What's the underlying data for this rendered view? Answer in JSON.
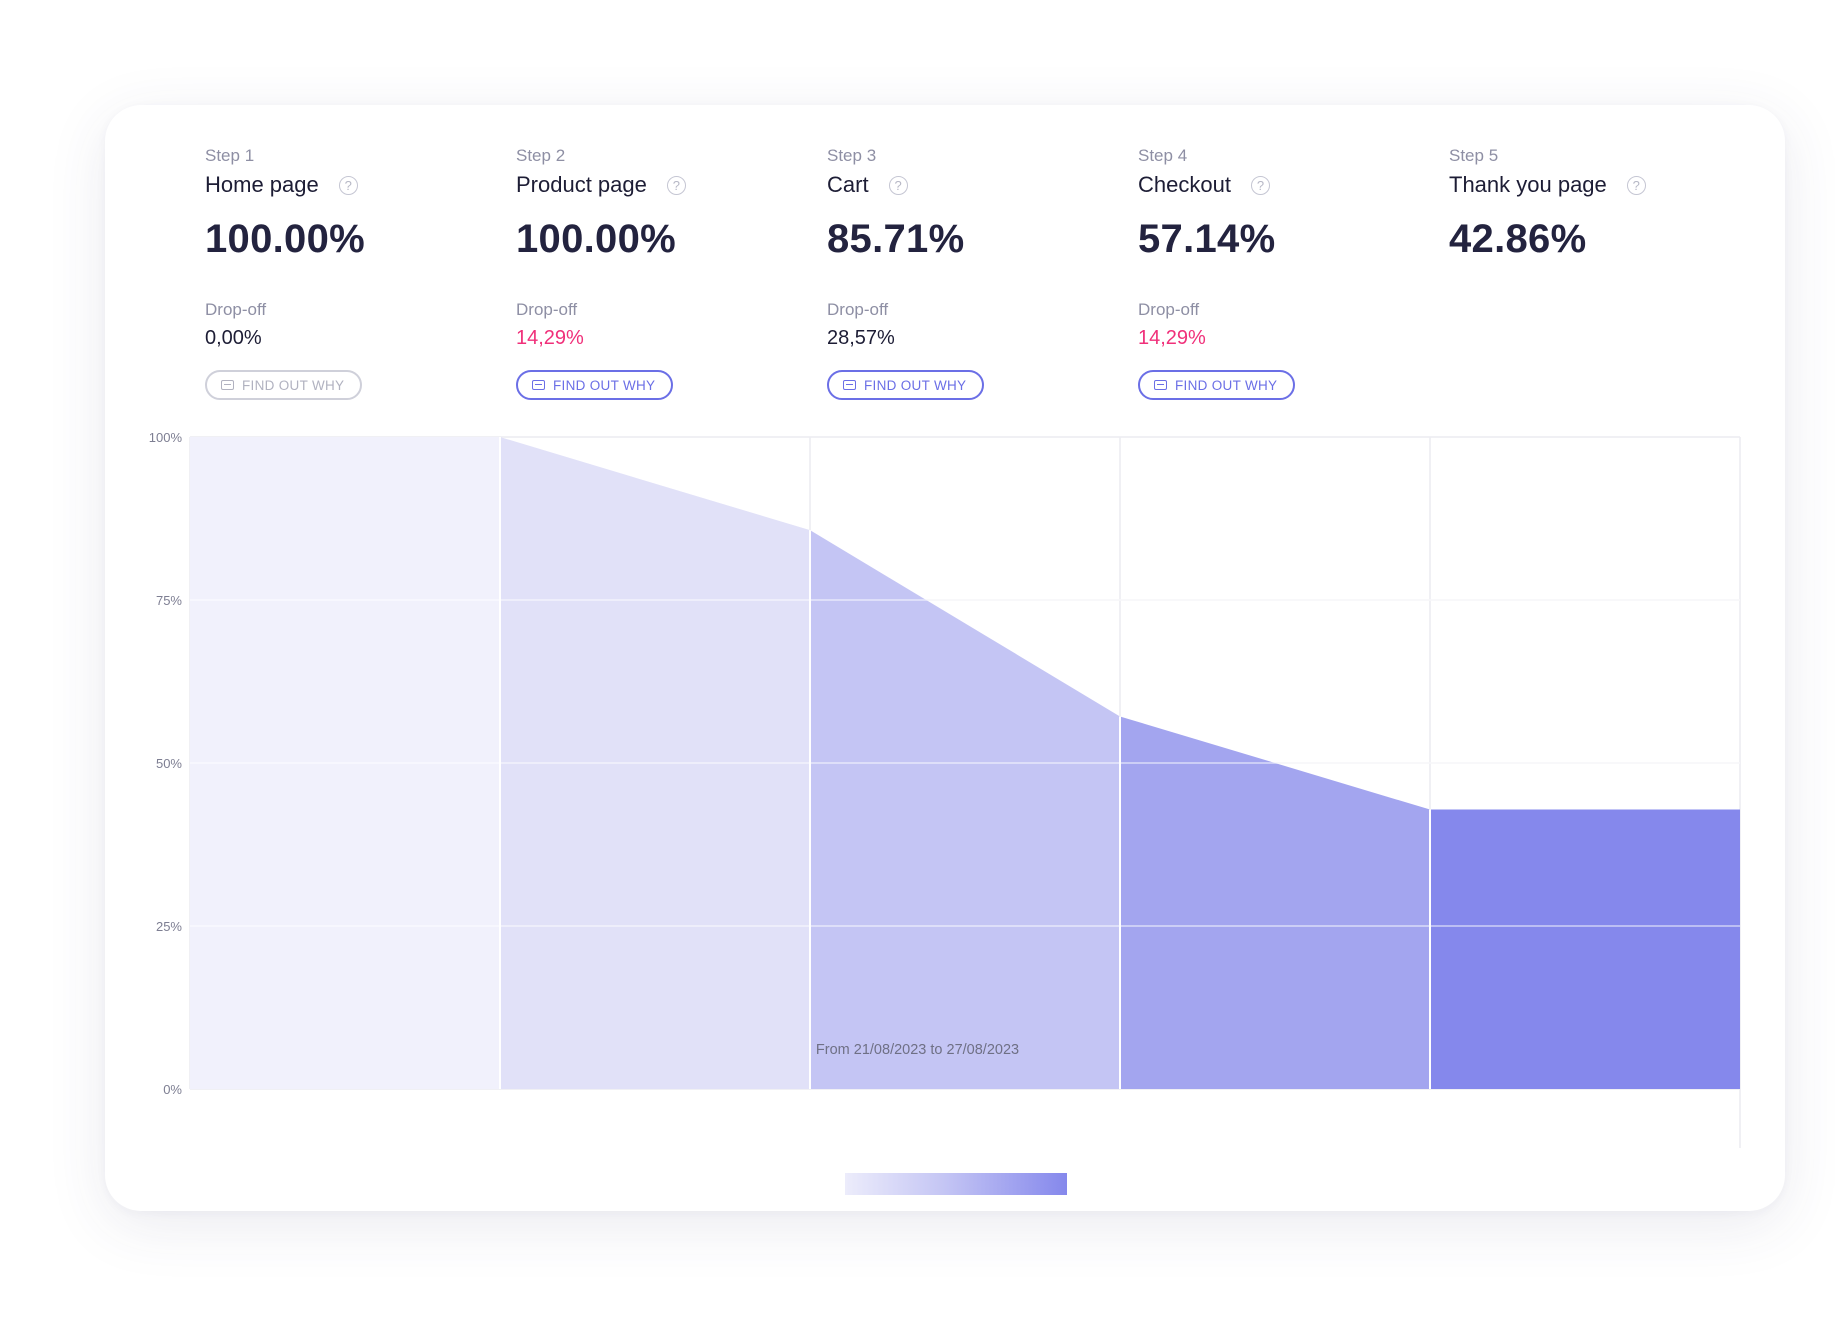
{
  "steps": [
    {
      "step_label": "Step 1",
      "title": "Home page",
      "value": "100.00%",
      "drop_label": "Drop-off",
      "drop_value": "0,00%",
      "drop_alert": false,
      "button": "FIND OUT WHY",
      "button_enabled": false
    },
    {
      "step_label": "Step 2",
      "title": "Product page",
      "value": "100.00%",
      "drop_label": "Drop-off",
      "drop_value": "14,29%",
      "drop_alert": true,
      "button": "FIND OUT WHY",
      "button_enabled": true
    },
    {
      "step_label": "Step 3",
      "title": "Cart",
      "value": "85.71%",
      "drop_label": "Drop-off",
      "drop_value": "28,57%",
      "drop_alert": false,
      "button": "FIND OUT WHY",
      "button_enabled": true
    },
    {
      "step_label": "Step 4",
      "title": "Checkout",
      "value": "57.14%",
      "drop_label": "Drop-off",
      "drop_value": "14,29%",
      "drop_alert": true,
      "button": "FIND OUT WHY",
      "button_enabled": true
    },
    {
      "step_label": "Step 5",
      "title": "Thank you page",
      "value": "42.86%"
    }
  ],
  "help_glyph": "?",
  "colors": {
    "step_fills": [
      "#f1f1fc",
      "#e1e1f8",
      "#c4c5f4",
      "#a3a5ef",
      "#8588ec"
    ],
    "accent": "#6b6fe6",
    "alert": "#f0307a",
    "grid": "#ececf1"
  },
  "chart_data": {
    "type": "area",
    "categories": [
      "Home page",
      "Product page",
      "Cart",
      "Checkout",
      "Thank you page"
    ],
    "series": [
      {
        "values": [
          100,
          100,
          85.71,
          57.14,
          42.86
        ]
      }
    ],
    "y_ticks": [
      "0%",
      "25%",
      "50%",
      "75%",
      "100%"
    ],
    "ylim": [
      0,
      100
    ],
    "grid": true,
    "legend": "bottom-center"
  },
  "date_range": "From 21/08/2023 to 27/08/2023"
}
